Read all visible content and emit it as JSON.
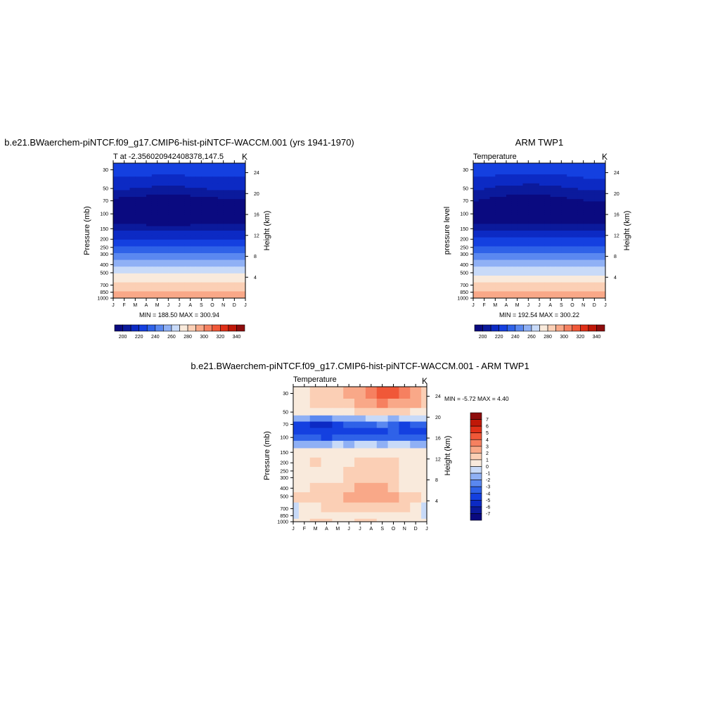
{
  "chart_data": [
    {
      "type": "heatmap",
      "title": "b.e21.BWaerchem-piNTCF.f09_g17.CMIP6-hist-piNTCF-WACCM.001 (yrs 1941-1970)",
      "left_label": "T at -2.356020942408378,147.5",
      "units": "K",
      "ylabel": "Pressure (mb)",
      "y2label": "Height (km)",
      "x_ticks": [
        "J",
        "F",
        "M",
        "A",
        "M",
        "J",
        "J",
        "A",
        "S",
        "O",
        "N",
        "D",
        "J"
      ],
      "y_ticks": [
        "30",
        "50",
        "70",
        "100",
        "150",
        "200",
        "250",
        "300",
        "400",
        "500",
        "700",
        "850",
        "1000"
      ],
      "y2_ticks": [
        "24",
        "20",
        "16",
        "12",
        "8",
        "4"
      ],
      "stats": "MIN = 188.50 MAX = 300.94",
      "colorbar": {
        "labels": [
          "200",
          "220",
          "240",
          "260",
          "280",
          "300",
          "320",
          "340"
        ],
        "levels": [
          190,
          200,
          210,
          220,
          230,
          240,
          250,
          260,
          270,
          280,
          290,
          300,
          310,
          320,
          330,
          340,
          350
        ],
        "colors": [
          "#0a0a80",
          "#0b1a9c",
          "#0c2ac4",
          "#1440e0",
          "#2f62e8",
          "#5a88f0",
          "#8fb0f5",
          "#c8daf8",
          "#f9eadc",
          "#fbcfb5",
          "#f9a888",
          "#f68060",
          "#f05838",
          "#e03018",
          "#c01808",
          "#8e0c0c"
        ]
      },
      "y_ticks_values": [
        30,
        50,
        70,
        100,
        150,
        200,
        250,
        300,
        400,
        500,
        700,
        850,
        1000
      ],
      "y2_ticks_values": [
        24,
        20,
        16,
        12,
        8,
        4
      ],
      "ylim": [
        25,
        1000
      ],
      "profile": [
        {
          "p": 30,
          "v": 225,
          "v_mid": 225
        },
        {
          "p": 50,
          "v": 213,
          "v_mid": 208
        },
        {
          "p": 70,
          "v": 197,
          "v_mid": 193
        },
        {
          "p": 100,
          "v": 192,
          "v_mid": 190
        },
        {
          "p": 125,
          "v": 196,
          "v_mid": 195
        },
        {
          "p": 150,
          "v": 206,
          "v_mid": 206
        },
        {
          "p": 200,
          "v": 221,
          "v_mid": 221
        },
        {
          "p": 250,
          "v": 233,
          "v_mid": 233
        },
        {
          "p": 300,
          "v": 243,
          "v_mid": 243
        },
        {
          "p": 400,
          "v": 258,
          "v_mid": 258
        },
        {
          "p": 500,
          "v": 268,
          "v_mid": 268
        },
        {
          "p": 700,
          "v": 283,
          "v_mid": 283
        },
        {
          "p": 850,
          "v": 292,
          "v_mid": 292
        },
        {
          "p": 1000,
          "v": 300,
          "v_mid": 300
        }
      ]
    },
    {
      "type": "heatmap",
      "title": "ARM TWP1",
      "left_label": "Temperature",
      "units": "K",
      "ylabel": "pressure level",
      "y2label": "Height (km)",
      "x_ticks": [
        "J",
        "F",
        "M",
        "A",
        "M",
        "J",
        "J",
        "A",
        "S",
        "O",
        "N",
        "D",
        "J"
      ],
      "y_ticks": [
        "30",
        "50",
        "70",
        "100",
        "150",
        "200",
        "250",
        "300",
        "400",
        "500",
        "700",
        "850",
        "1000"
      ],
      "y2_ticks": [
        "24",
        "20",
        "16",
        "12",
        "8",
        "4"
      ],
      "stats": "MIN = 192.54 MAX = 300.22",
      "colorbar": {
        "labels": [
          "200",
          "220",
          "240",
          "260",
          "280",
          "300",
          "320",
          "340"
        ],
        "levels": [
          190,
          200,
          210,
          220,
          230,
          240,
          250,
          260,
          270,
          280,
          290,
          300,
          310,
          320,
          330,
          340,
          350
        ],
        "colors": [
          "#0a0a80",
          "#0b1a9c",
          "#0c2ac4",
          "#1440e0",
          "#2f62e8",
          "#5a88f0",
          "#8fb0f5",
          "#c8daf8",
          "#f9eadc",
          "#fbcfb5",
          "#f9a888",
          "#f68060",
          "#f05838",
          "#e03018",
          "#c01808",
          "#8e0c0c"
        ]
      },
      "y_ticks_values": [
        30,
        50,
        70,
        100,
        150,
        200,
        250,
        300,
        400,
        500,
        700,
        850,
        1000
      ],
      "y2_ticks_values": [
        24,
        20,
        16,
        12,
        8,
        4
      ],
      "ylim": [
        25,
        1000
      ],
      "profile": [
        {
          "p": 30,
          "v": 226,
          "v_mid": 224
        },
        {
          "p": 50,
          "v": 212,
          "v_mid": 206
        },
        {
          "p": 70,
          "v": 200,
          "v_mid": 194
        },
        {
          "p": 100,
          "v": 195,
          "v_mid": 192
        },
        {
          "p": 125,
          "v": 198,
          "v_mid": 197
        },
        {
          "p": 150,
          "v": 207,
          "v_mid": 207
        },
        {
          "p": 200,
          "v": 221,
          "v_mid": 221
        },
        {
          "p": 250,
          "v": 232,
          "v_mid": 232
        },
        {
          "p": 300,
          "v": 242,
          "v_mid": 242
        },
        {
          "p": 400,
          "v": 257,
          "v_mid": 257
        },
        {
          "p": 500,
          "v": 267,
          "v_mid": 267
        },
        {
          "p": 700,
          "v": 282,
          "v_mid": 282
        },
        {
          "p": 850,
          "v": 291,
          "v_mid": 291
        },
        {
          "p": 1000,
          "v": 299,
          "v_mid": 299
        }
      ]
    },
    {
      "type": "heatmap",
      "title": "b.e21.BWaerchem-piNTCF.f09_g17.CMIP6-hist-piNTCF-WACCM.001 - ARM TWP1",
      "left_label": "Temperature",
      "units": "K",
      "ylabel": "Pressure (mb)",
      "y2label": "Height (km)",
      "x_ticks": [
        "J",
        "F",
        "M",
        "A",
        "M",
        "J",
        "J",
        "A",
        "S",
        "O",
        "N",
        "D",
        "J"
      ],
      "y_ticks": [
        "30",
        "50",
        "70",
        "100",
        "150",
        "200",
        "250",
        "300",
        "400",
        "500",
        "700",
        "850",
        "1000"
      ],
      "y2_ticks": [
        "24",
        "20",
        "16",
        "12",
        "8",
        "4"
      ],
      "stats": "MIN =  -5.72 MAX =   4.40",
      "colorbar": {
        "labels": [
          "7",
          "6",
          "5",
          "4",
          "3",
          "2",
          "1",
          "0",
          "-1",
          "-2",
          "-3",
          "-4",
          "-5",
          "-6",
          "-7"
        ],
        "levels": [
          -8,
          -7,
          -6,
          -5,
          -4,
          -3,
          -2,
          -1,
          0,
          1,
          2,
          3,
          4,
          5,
          6,
          7,
          8
        ],
        "colors": [
          "#0a0a80",
          "#0b1a9c",
          "#0c2ac4",
          "#1440e0",
          "#2f62e8",
          "#5a88f0",
          "#8fb0f5",
          "#c8daf8",
          "#f9eadc",
          "#fbcfb5",
          "#f9a888",
          "#f68060",
          "#f05838",
          "#e03018",
          "#c01808",
          "#8e0c0c"
        ]
      },
      "y_ticks_values": [
        30,
        50,
        70,
        100,
        150,
        200,
        250,
        300,
        400,
        500,
        700,
        850,
        1000
      ],
      "y2_ticks_values": [
        24,
        20,
        16,
        12,
        8,
        4
      ],
      "ylim": [
        25,
        1000
      ],
      "diff_grid": {
        "p": [
          30,
          40,
          50,
          60,
          70,
          85,
          100,
          120,
          150,
          200,
          250,
          300,
          400,
          500,
          700,
          850,
          1000
        ],
        "rows": [
          [
            0.5,
            0.8,
            1.2,
            1.5,
            1.5,
            2.0,
            2.5,
            3.0,
            4.0,
            4.4,
            3.5,
            2.5,
            1.5
          ],
          [
            0.8,
            0.8,
            1.0,
            1.2,
            1.5,
            1.8,
            2.0,
            2.5,
            3.0,
            2.0,
            2.5,
            2.0,
            1.5
          ],
          [
            0.5,
            0.3,
            0.3,
            0.5,
            0.8,
            0.8,
            1.0,
            1.0,
            1.5,
            1.5,
            1.0,
            0.8,
            0.5
          ],
          [
            -1.5,
            -2.0,
            -2.5,
            -2.5,
            -2.0,
            -1.5,
            -1.5,
            -1.0,
            -1.0,
            -1.5,
            -1.0,
            -0.5,
            -1.0
          ],
          [
            -4.5,
            -5.0,
            -5.5,
            -5.72,
            -4.8,
            -4.0,
            -4.0,
            -3.5,
            -3.0,
            -3.5,
            -4.5,
            -3.5,
            -4.0
          ],
          [
            -5.0,
            -4.5,
            -5.0,
            -4.5,
            -4.5,
            -4.5,
            -5.0,
            -4.5,
            -5.0,
            -4.0,
            -4.5,
            -4.5,
            -4.5
          ],
          [
            -4.0,
            -3.5,
            -4.0,
            -4.5,
            -4.0,
            -4.0,
            -3.5,
            -4.0,
            -3.5,
            -3.5,
            -3.5,
            -3.5,
            -3.5
          ],
          [
            -1.5,
            -2.0,
            -2.0,
            -1.5,
            -1.0,
            -1.5,
            -1.0,
            -1.0,
            -1.5,
            -1.0,
            -1.0,
            -1.5,
            -1.5
          ],
          [
            0.5,
            0.5,
            0.5,
            0.5,
            0.5,
            0.5,
            0.5,
            0.5,
            0.5,
            0.5,
            0.5,
            0.5,
            0.5
          ],
          [
            0.5,
            0.5,
            1.0,
            0.5,
            0.5,
            0.5,
            1.5,
            1.5,
            1.5,
            1.5,
            0.5,
            0.5,
            0.5
          ],
          [
            0.5,
            0.5,
            0.5,
            0.5,
            0.5,
            1.5,
            1.5,
            1.5,
            1.5,
            1.2,
            0.5,
            0.5,
            0.5
          ],
          [
            0.5,
            0.5,
            0.5,
            0.5,
            0.5,
            1.2,
            1.5,
            1.5,
            1.5,
            1.0,
            0.5,
            0.5,
            0.5
          ],
          [
            0.5,
            0.5,
            1.2,
            1.2,
            1.5,
            1.5,
            2.0,
            2.5,
            2.0,
            1.5,
            0.5,
            0.5,
            0.5
          ],
          [
            1.2,
            1.2,
            1.5,
            1.5,
            1.8,
            2.2,
            2.5,
            2.8,
            2.5,
            2.0,
            1.5,
            1.0,
            0.8
          ],
          [
            -0.5,
            0.5,
            0.8,
            1.0,
            1.0,
            1.0,
            1.2,
            1.2,
            1.2,
            1.5,
            1.0,
            0.8,
            -0.5
          ],
          [
            -0.5,
            0.5,
            0.8,
            0.5,
            0.5,
            0.5,
            0.8,
            0.8,
            0.8,
            0.5,
            0.5,
            0.5,
            -0.5
          ],
          [
            0.5,
            0.5,
            1.0,
            1.0,
            0.5,
            0.5,
            1.0,
            1.0,
            0.5,
            0.5,
            0.5,
            0.5,
            0.5
          ]
        ]
      }
    }
  ]
}
